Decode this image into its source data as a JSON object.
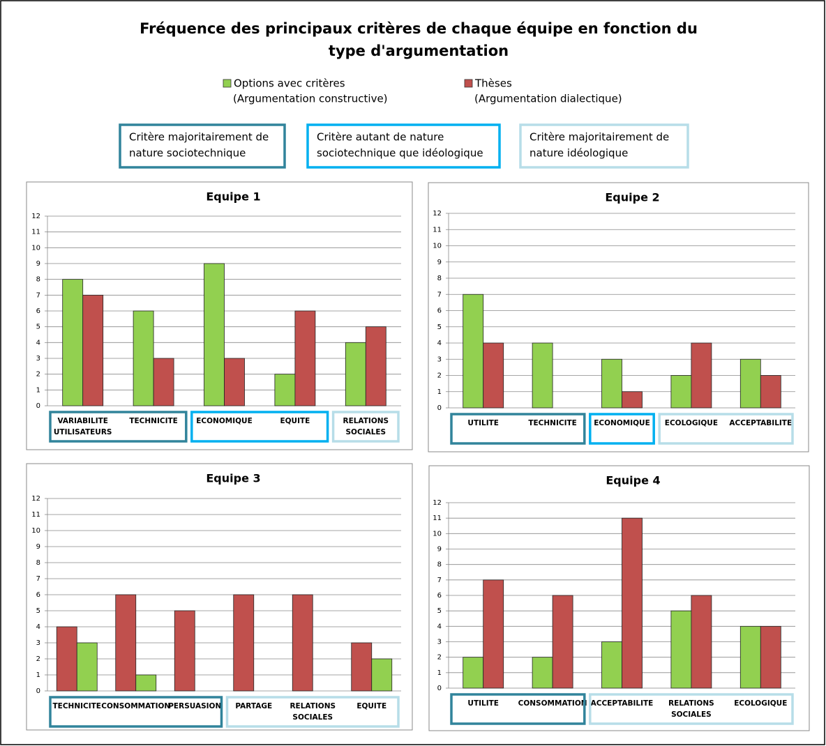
{
  "title": [
    "Fréquence des principaux critères de chaque équipe en fonction du",
    "type d'argumentation"
  ],
  "legend": [
    {
      "name": "Options avec critères",
      "note": "(Argumentation  constructive)",
      "color": "#92d050"
    },
    {
      "name": "Thèses",
      "note": "(Argumentation dialectique)",
      "color": "#c0504d"
    }
  ],
  "box_legend": [
    {
      "lines": [
        "Critère majoritairement de",
        "nature sociotechnique"
      ],
      "color": "#31849b"
    },
    {
      "lines": [
        "Critère autant de nature",
        "sociotechnique que idéologique"
      ],
      "color": "#00b0f0"
    },
    {
      "lines": [
        "Critère majoritairement de",
        "nature idéologique"
      ],
      "color": "#b7dde8"
    }
  ],
  "chart_data": [
    {
      "type": "bar",
      "title": "Equipe 1",
      "categories": [
        [
          "VARIABILITE",
          "UTILISATEURS"
        ],
        "TECHNICITE",
        "ECONOMIQUE",
        "EQUITE",
        [
          "RELATIONS",
          "SOCIALES"
        ]
      ],
      "series": [
        {
          "color": "#92d050",
          "values": [
            8,
            6,
            9,
            2,
            4
          ]
        },
        {
          "color": "#c0504d",
          "values": [
            7,
            3,
            3,
            6,
            5
          ]
        }
      ],
      "groups": [
        {
          "box": 0,
          "size": 2
        },
        {
          "box": 1,
          "size": 2
        },
        {
          "box": 2,
          "size": 1
        }
      ],
      "ylim": [
        0,
        12
      ],
      "yticks": [
        0,
        1,
        2,
        3,
        4,
        5,
        6,
        7,
        8,
        9,
        10,
        11,
        12
      ],
      "grid": true
    },
    {
      "type": "bar",
      "title": "Equipe 2",
      "categories": [
        "UTILITE",
        "TECHNICITE",
        "ECONOMIQUE",
        "ECOLOGIQUE",
        "ACCEPTABILITE"
      ],
      "series": [
        {
          "color": "#92d050",
          "values": [
            7,
            4,
            3,
            2,
            3
          ]
        },
        {
          "color": "#c0504d",
          "values": [
            4,
            0,
            1,
            4,
            2
          ]
        }
      ],
      "groups": [
        {
          "box": 0,
          "size": 2
        },
        {
          "box": 1,
          "size": 1
        },
        {
          "box": 2,
          "size": 2
        }
      ],
      "ylim": [
        0,
        12
      ],
      "yticks": [
        0,
        1,
        2,
        3,
        4,
        5,
        6,
        7,
        8,
        9,
        10,
        11,
        12
      ],
      "grid": true
    },
    {
      "type": "bar",
      "title": "Equipe 3",
      "categories": [
        "TECHNICITE",
        "CONSOMMATION",
        "PERSUASION",
        "PARTAGE",
        [
          "RELATIONS",
          "SOCIALES"
        ],
        "EQUITE"
      ],
      "series": [
        {
          "color": "#c0504d",
          "values": [
            4,
            6,
            5,
            6,
            6,
            3
          ]
        },
        {
          "color": "#92d050",
          "values": [
            3,
            1,
            0,
            0,
            0,
            2
          ]
        }
      ],
      "groups": [
        {
          "box": 0,
          "size": 3
        },
        {
          "box": 2,
          "size": 3
        }
      ],
      "ylim": [
        0,
        12
      ],
      "yticks": [
        0,
        1,
        2,
        3,
        4,
        5,
        6,
        7,
        8,
        9,
        10,
        11,
        12
      ],
      "grid": true
    },
    {
      "type": "bar",
      "title": "Equipe 4",
      "categories": [
        "UTILITE",
        "CONSOMMATION",
        "ACCEPTABILITE",
        [
          "RELATIONS",
          "SOCIALES"
        ],
        "ECOLOGIQUE"
      ],
      "series": [
        {
          "color": "#92d050",
          "values": [
            2,
            2,
            3,
            5,
            4
          ]
        },
        {
          "color": "#c0504d",
          "values": [
            7,
            6,
            11,
            6,
            4
          ]
        }
      ],
      "groups": [
        {
          "box": 0,
          "size": 2
        },
        {
          "box": 2,
          "size": 3
        }
      ],
      "ylim": [
        0,
        12
      ],
      "yticks": [
        0,
        1,
        2,
        3,
        4,
        5,
        6,
        7,
        8,
        9,
        10,
        11,
        12
      ],
      "grid": true
    }
  ]
}
